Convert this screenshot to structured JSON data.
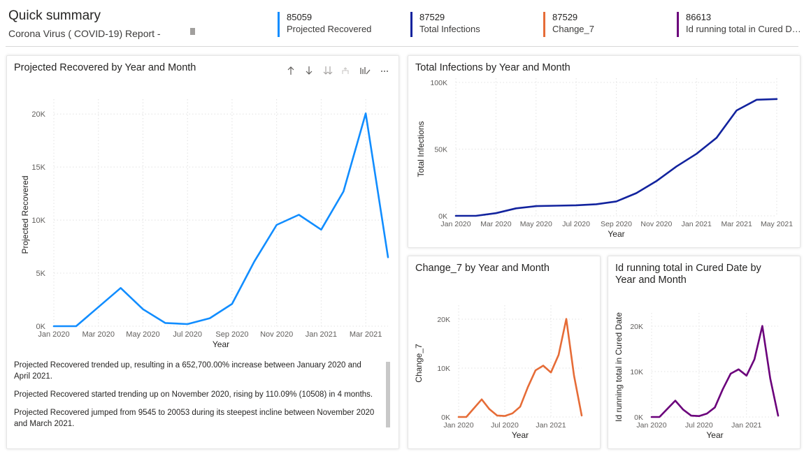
{
  "header": {
    "title": "Quick summary",
    "subtitle": "Corona Virus ( COVID-19) Report -"
  },
  "kpis": [
    {
      "value": "85059",
      "label": "Projected Recovered",
      "color": "#118DFF"
    },
    {
      "value": "87529",
      "label": "Total Infections",
      "color": "#12239E"
    },
    {
      "value": "87529",
      "label": "Change_7",
      "color": "#E66C37"
    },
    {
      "value": "86613",
      "label": "Id running total in Cured Date",
      "color": "#6B007B"
    }
  ],
  "narrative": [
    "Projected Recovered trended up, resulting in a 652,700.00% increase between January 2020 and April 2021.",
    "Projected Recovered started trending up on November 2020, rising by 110.09% (10508) in 4 months.",
    "Projected Recovered jumped from 9545 to 20053 during its steepest incline between November 2020 and March 2021."
  ],
  "chart_data": [
    {
      "type": "line",
      "title": "Projected Recovered by Year and Month",
      "xlabel": "Year",
      "ylabel": "Projected Recovered",
      "color": "#118DFF",
      "x": [
        "2020-01",
        "2020-02",
        "2020-03",
        "2020-04",
        "2020-05",
        "2020-06",
        "2020-07",
        "2020-08",
        "2020-09",
        "2020-10",
        "2020-11",
        "2020-12",
        "2021-01",
        "2021-02",
        "2021-03",
        "2021-04"
      ],
      "x_tick_labels": [
        "Jan 2020",
        "Mar 2020",
        "May 2020",
        "Jul 2020",
        "Sep 2020",
        "Nov 2020",
        "Jan 2021",
        "Mar 2021"
      ],
      "y": [
        0,
        0,
        1800,
        3600,
        1600,
        300,
        200,
        750,
        2100,
        6100,
        9545,
        10500,
        9100,
        12700,
        20053,
        6500
      ],
      "y_ticks": [
        "0K",
        "5K",
        "10K",
        "15K",
        "20K"
      ],
      "ylim": [
        0,
        21000
      ],
      "grid": true
    },
    {
      "type": "line",
      "title": "Total Infections by Year and Month",
      "xlabel": "Year",
      "ylabel": "Total Infections",
      "color": "#12239E",
      "x": [
        "2020-01",
        "2020-02",
        "2020-03",
        "2020-04",
        "2020-05",
        "2020-06",
        "2020-07",
        "2020-08",
        "2020-09",
        "2020-10",
        "2020-11",
        "2020-12",
        "2021-01",
        "2021-02",
        "2021-03",
        "2021-04",
        "2021-05"
      ],
      "x_tick_labels": [
        "Jan 2020",
        "Mar 2020",
        "May 2020",
        "Jul 2020",
        "Sep 2020",
        "Nov 2020",
        "Jan 2021",
        "Mar 2021",
        "May 2021"
      ],
      "y": [
        0,
        0,
        2000,
        5600,
        7300,
        7600,
        7900,
        8700,
        10800,
        17000,
        26000,
        37000,
        46500,
        58500,
        79000,
        87000,
        87529
      ],
      "y_ticks": [
        "0K",
        "50K",
        "100K"
      ],
      "ylim": [
        0,
        100000
      ],
      "grid": true
    },
    {
      "type": "line",
      "title": "Change_7 by Year and Month",
      "xlabel": "Year",
      "ylabel": "Change_7",
      "color": "#E66C37",
      "x": [
        "2020-01",
        "2020-02",
        "2020-03",
        "2020-04",
        "2020-05",
        "2020-06",
        "2020-07",
        "2020-08",
        "2020-09",
        "2020-10",
        "2020-11",
        "2020-12",
        "2021-01",
        "2021-02",
        "2021-03",
        "2021-04",
        "2021-05"
      ],
      "x_tick_labels": [
        "Jan 2020",
        "Jul 2020",
        "Jan 2021"
      ],
      "y": [
        0,
        0,
        1800,
        3600,
        1600,
        300,
        200,
        750,
        2100,
        6100,
        9545,
        10500,
        9100,
        12700,
        20053,
        8500,
        300
      ],
      "y_ticks": [
        "0K",
        "10K",
        "20K"
      ],
      "ylim": [
        0,
        22000
      ],
      "grid": true
    },
    {
      "type": "line",
      "title": "Id running total in Cured Date by Year and Month",
      "xlabel": "Year",
      "ylabel": "Id running total in Cured Date",
      "color": "#6B007B",
      "x": [
        "2020-01",
        "2020-02",
        "2020-03",
        "2020-04",
        "2020-05",
        "2020-06",
        "2020-07",
        "2020-08",
        "2020-09",
        "2020-10",
        "2020-11",
        "2020-12",
        "2021-01",
        "2021-02",
        "2021-03",
        "2021-04",
        "2021-05"
      ],
      "x_tick_labels": [
        "Jan 2020",
        "Jul 2020",
        "Jan 2021"
      ],
      "y": [
        0,
        0,
        1800,
        3600,
        1600,
        300,
        200,
        750,
        2100,
        6100,
        9545,
        10500,
        9100,
        12700,
        20053,
        8500,
        300
      ],
      "y_ticks": [
        "0K",
        "10K",
        "20K"
      ],
      "ylim": [
        0,
        22000
      ],
      "grid": true
    }
  ]
}
